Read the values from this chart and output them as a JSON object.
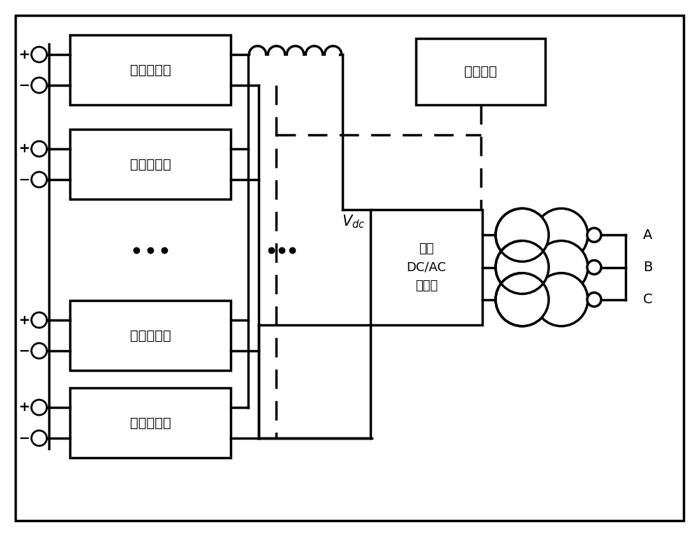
{
  "line_color": "#000000",
  "modules_label": "模组变换器",
  "dc_ac_label": "双向\nDC/AC\n变换器",
  "control_label": "控制系统",
  "phase_labels": [
    "A",
    "B",
    "C"
  ],
  "figw": 10.0,
  "figh": 7.67
}
